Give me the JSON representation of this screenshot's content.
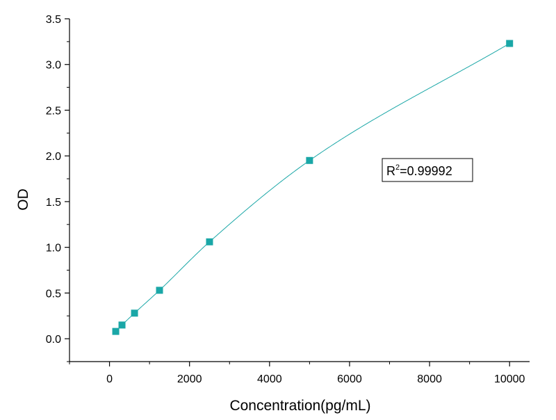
{
  "chart_data": {
    "type": "scatter",
    "xlabel": "Concentration(pg/mL)",
    "ylabel": "OD",
    "xlim": [
      -1000,
      10500
    ],
    "ylim": [
      -0.25,
      3.5
    ],
    "x_ticks": [
      0,
      2000,
      4000,
      6000,
      8000,
      10000
    ],
    "x_tick_labels": [
      "0",
      "2000",
      "4000",
      "6000",
      "8000",
      "10000"
    ],
    "y_ticks": [
      0.0,
      0.5,
      1.0,
      1.5,
      2.0,
      2.5,
      3.0,
      3.5
    ],
    "y_tick_labels": [
      "0.0",
      "0.5",
      "1.0",
      "1.5",
      "2.0",
      "2.5",
      "3.0",
      "3.5"
    ],
    "grid": false,
    "series": [
      {
        "marker": "square",
        "color": "#1aa7a7",
        "points": [
          {
            "x": 156,
            "y": 0.08
          },
          {
            "x": 312,
            "y": 0.15
          },
          {
            "x": 625,
            "y": 0.28
          },
          {
            "x": 1250,
            "y": 0.53
          },
          {
            "x": 2500,
            "y": 1.06
          },
          {
            "x": 5000,
            "y": 1.95
          },
          {
            "x": 10000,
            "y": 3.23
          }
        ]
      }
    ],
    "fit_curve": {
      "color": "#1aa7a7"
    },
    "annotations": [
      {
        "base": "R",
        "superscript": "2",
        "text": "=0.99992"
      }
    ]
  }
}
